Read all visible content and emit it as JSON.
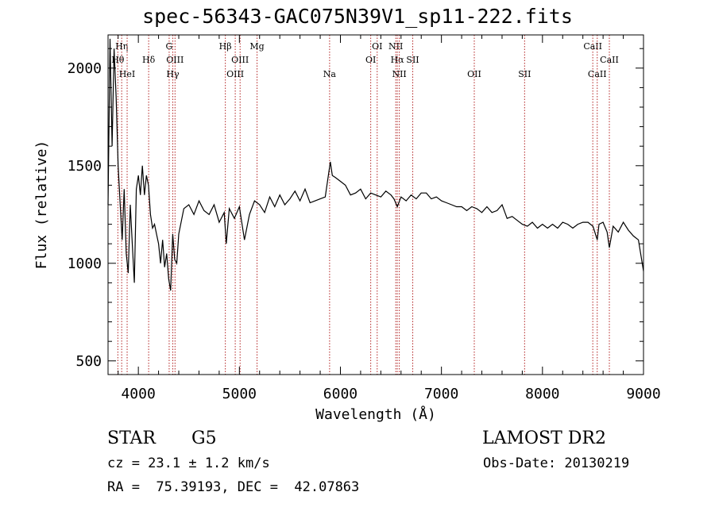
{
  "title": "spec-56343-GAC075N39V1_sp11-222.fits",
  "info": {
    "class": "STAR",
    "subclass": "G5",
    "survey": "LAMOST DR2",
    "cz": "cz = 23.1 ± 1.2 km/s",
    "obs_date": "Obs-Date: 20130219",
    "radec": "RA =  75.39193, DEC =  42.07863"
  },
  "chart_data": {
    "type": "line",
    "title": "spec-56343-GAC075N39V1_sp11-222.fits",
    "xlabel": "Wavelength (Å)",
    "ylabel": "Flux (relative)",
    "xlim": [
      3700,
      9000
    ],
    "ylim": [
      430,
      2170
    ],
    "x_ticks": [
      4000,
      5000,
      6000,
      7000,
      8000,
      9000
    ],
    "y_ticks": [
      500,
      1000,
      1500,
      2000
    ],
    "line_color": "#000000",
    "marker_color": "#b22222",
    "series": [
      {
        "x": [
          3700,
          3720,
          3740,
          3760,
          3780,
          3800,
          3820,
          3840,
          3860,
          3880,
          3900,
          3920,
          3940,
          3960,
          3980,
          4000,
          4020,
          4040,
          4060,
          4080,
          4100,
          4120,
          4140,
          4160,
          4180,
          4200,
          4220,
          4240,
          4260,
          4280,
          4300,
          4320,
          4340,
          4360,
          4380,
          4400,
          4450,
          4500,
          4550,
          4600,
          4650,
          4700,
          4750,
          4800,
          4850,
          4870,
          4900,
          4950,
          5000,
          5050,
          5100,
          5150,
          5200,
          5250,
          5300,
          5350,
          5400,
          5450,
          5500,
          5550,
          5600,
          5650,
          5700,
          5750,
          5800,
          5850,
          5900,
          5920,
          5950,
          6000,
          6050,
          6100,
          6150,
          6200,
          6250,
          6300,
          6350,
          6400,
          6450,
          6500,
          6530,
          6563,
          6600,
          6650,
          6700,
          6750,
          6800,
          6850,
          6900,
          6950,
          7000,
          7050,
          7100,
          7150,
          7200,
          7250,
          7300,
          7350,
          7400,
          7450,
          7500,
          7550,
          7600,
          7650,
          7700,
          7750,
          7800,
          7850,
          7900,
          7950,
          8000,
          8050,
          8100,
          8150,
          8200,
          8250,
          8300,
          8350,
          8400,
          8450,
          8500,
          8542,
          8560,
          8600,
          8640,
          8662,
          8700,
          8750,
          8800,
          8850,
          8900,
          8950,
          9000
        ],
        "y": [
          1300,
          2150,
          1600,
          2100,
          1850,
          1500,
          1300,
          1120,
          1380,
          1050,
          950,
          1300,
          1100,
          900,
          1380,
          1450,
          1350,
          1500,
          1350,
          1450,
          1400,
          1250,
          1180,
          1200,
          1150,
          1100,
          1000,
          1120,
          980,
          1050,
          920,
          860,
          1150,
          1020,
          1000,
          1150,
          1280,
          1300,
          1250,
          1320,
          1270,
          1250,
          1300,
          1210,
          1260,
          1100,
          1280,
          1230,
          1290,
          1120,
          1250,
          1320,
          1300,
          1260,
          1340,
          1290,
          1350,
          1300,
          1330,
          1370,
          1320,
          1380,
          1310,
          1320,
          1330,
          1340,
          1520,
          1450,
          1440,
          1420,
          1400,
          1350,
          1360,
          1380,
          1330,
          1360,
          1350,
          1340,
          1370,
          1350,
          1330,
          1290,
          1340,
          1320,
          1350,
          1330,
          1360,
          1360,
          1330,
          1340,
          1320,
          1310,
          1300,
          1290,
          1290,
          1270,
          1290,
          1280,
          1260,
          1290,
          1260,
          1270,
          1300,
          1230,
          1240,
          1220,
          1200,
          1190,
          1210,
          1180,
          1200,
          1180,
          1200,
          1180,
          1210,
          1200,
          1180,
          1200,
          1210,
          1210,
          1190,
          1120,
          1200,
          1210,
          1160,
          1080,
          1190,
          1160,
          1210,
          1170,
          1140,
          1120,
          960
        ]
      }
    ],
    "lines": [
      {
        "name": "Hη",
        "x": 3835,
        "row": 1
      },
      {
        "name": "Hθ",
        "x": 3797,
        "row": 2
      },
      {
        "name": "HeI",
        "x": 3889,
        "row": 3
      },
      {
        "name": "Hδ",
        "x": 4102,
        "row": 2
      },
      {
        "name": "G",
        "x": 4305,
        "row": 1
      },
      {
        "name": "OIII",
        "x": 4363,
        "row": 2
      },
      {
        "name": "Hγ",
        "x": 4341,
        "row": 3
      },
      {
        "name": "Hβ",
        "x": 4861,
        "row": 1
      },
      {
        "name": "OIII",
        "x": 5007,
        "row": 2
      },
      {
        "name": "OIII",
        "x": 4959,
        "row": 3
      },
      {
        "name": "Mg",
        "x": 5175,
        "row": 1
      },
      {
        "name": "Na",
        "x": 5893,
        "row": 3
      },
      {
        "name": "OI",
        "x": 6300,
        "row": 2
      },
      {
        "name": "OI",
        "x": 6364,
        "row": 1
      },
      {
        "name": "NII",
        "x": 6548,
        "row": 1
      },
      {
        "name": "Hα",
        "x": 6563,
        "row": 2
      },
      {
        "name": "NII",
        "x": 6583,
        "row": 3
      },
      {
        "name": "SII",
        "x": 6716,
        "row": 2
      },
      {
        "name": "OII",
        "x": 7325,
        "row": 3
      },
      {
        "name": "SII",
        "x": 7823,
        "row": 3
      },
      {
        "name": "CaII",
        "x": 8498,
        "row": 1
      },
      {
        "name": "CaII",
        "x": 8542,
        "row": 3
      },
      {
        "name": "CaII",
        "x": 8662,
        "row": 2
      }
    ]
  }
}
